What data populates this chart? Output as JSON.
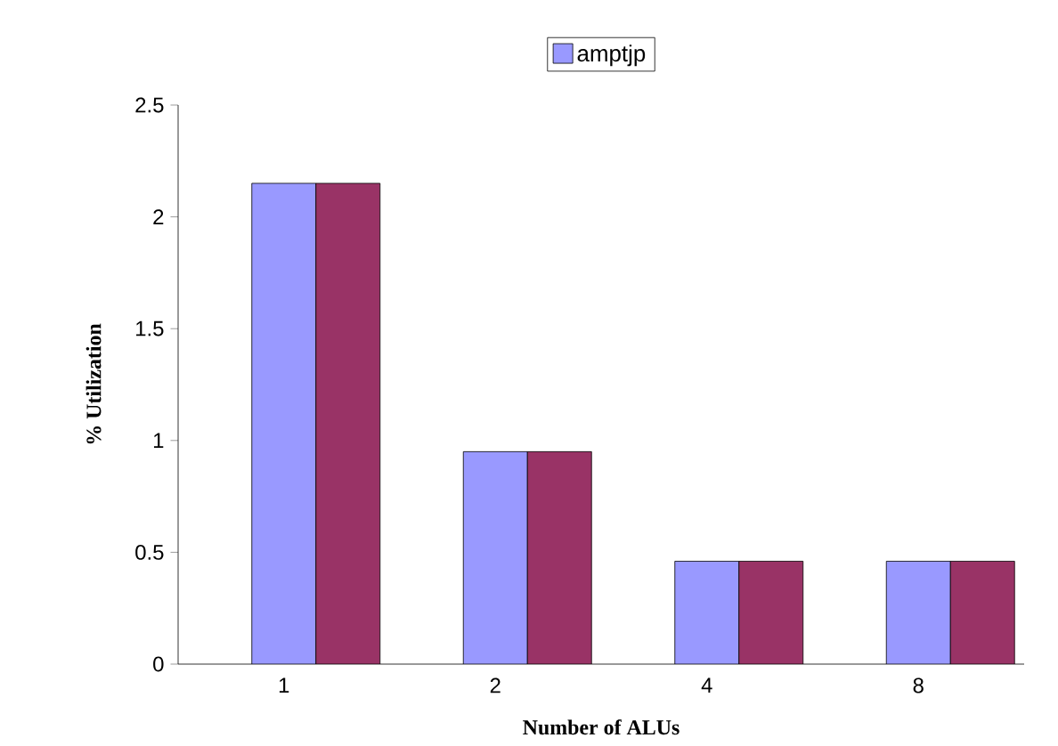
{
  "chart_data": {
    "type": "bar",
    "xlabel": "Number of ALUs",
    "ylabel": "% Utilization",
    "categories": [
      "1",
      "2",
      "4",
      "8"
    ],
    "series": [
      {
        "name": "amptjp",
        "color": "#9999ff",
        "values": [
          2.15,
          0.95,
          0.46,
          0.46
        ]
      },
      {
        "color": "#993366",
        "values": [
          2.15,
          0.95,
          0.46,
          0.46
        ]
      }
    ],
    "ylim": [
      0,
      2.5
    ],
    "yticks": [
      0,
      0.5,
      1,
      1.5,
      2,
      2.5
    ],
    "grid": false,
    "legend": "top"
  }
}
